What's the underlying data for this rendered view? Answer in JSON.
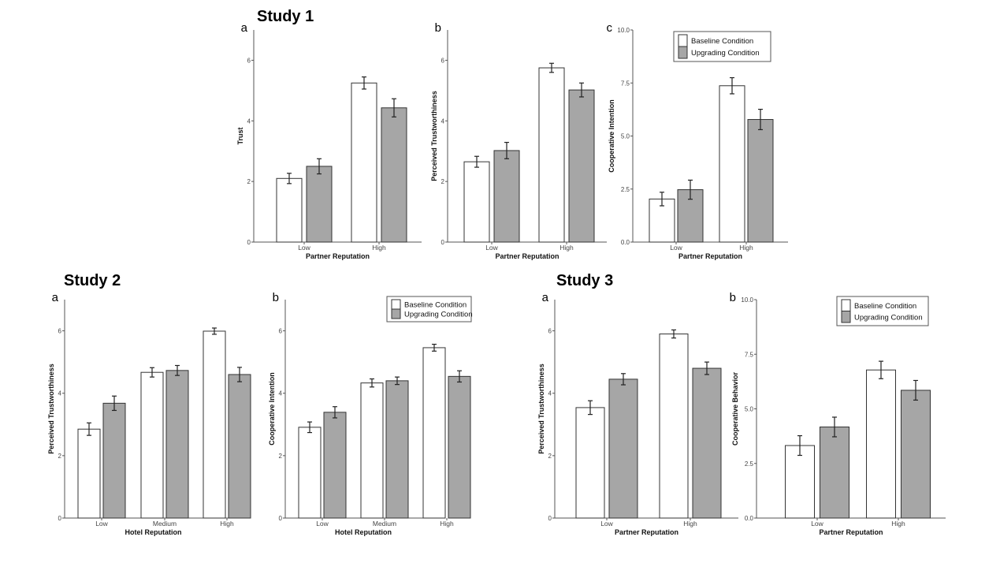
{
  "studies": [
    {
      "title": "Study 1"
    },
    {
      "title": "Study 2"
    },
    {
      "title": "Study 3"
    }
  ],
  "colors": {
    "baseline": "#ffffff",
    "upgrading": "#a6a6a6",
    "outline": "#333333"
  },
  "chart_data": [
    {
      "type": "bar",
      "study": "Study 1",
      "panel": "a",
      "ylabel": "Trust",
      "xlabel": "Partner Reputation",
      "categories": [
        "Low",
        "High"
      ],
      "ylim": [
        0,
        7
      ],
      "yticks": [
        "0",
        "2",
        "4",
        "6"
      ],
      "ytick_values": [
        0,
        2,
        4,
        6
      ],
      "legend": false,
      "series": [
        {
          "name": "Baseline Condition",
          "values": [
            2.1,
            5.25
          ],
          "errors": [
            0.17,
            0.2
          ]
        },
        {
          "name": "Upgrading Condition",
          "values": [
            2.5,
            4.43
          ],
          "errors": [
            0.25,
            0.3
          ]
        }
      ]
    },
    {
      "type": "bar",
      "study": "Study 1",
      "panel": "b",
      "ylabel": "Perceived Trustworthiness",
      "xlabel": "Partner Reputation",
      "categories": [
        "Low",
        "High"
      ],
      "ylim": [
        0,
        7
      ],
      "yticks": [
        "0",
        "2",
        "4",
        "6"
      ],
      "ytick_values": [
        0,
        2,
        4,
        6
      ],
      "legend": false,
      "series": [
        {
          "name": "Baseline Condition",
          "values": [
            2.65,
            5.75
          ],
          "errors": [
            0.18,
            0.15
          ]
        },
        {
          "name": "Upgrading Condition",
          "values": [
            3.02,
            5.02
          ],
          "errors": [
            0.27,
            0.23
          ]
        }
      ]
    },
    {
      "type": "bar",
      "study": "Study 1",
      "panel": "c",
      "ylabel": "Cooperative Intention",
      "xlabel": "Partner Reputation",
      "categories": [
        "Low",
        "High"
      ],
      "ylim": [
        0,
        10
      ],
      "yticks": [
        "0.0",
        "2.5",
        "5.0",
        "7.5",
        "10.0"
      ],
      "ytick_values": [
        0,
        2.5,
        5,
        7.5,
        10
      ],
      "legend": "top-right",
      "series": [
        {
          "name": "Baseline Condition",
          "values": [
            2.03,
            7.37
          ],
          "errors": [
            0.32,
            0.38
          ]
        },
        {
          "name": "Upgrading Condition",
          "values": [
            2.47,
            5.78
          ],
          "errors": [
            0.45,
            0.48
          ]
        }
      ]
    },
    {
      "type": "bar",
      "study": "Study 2",
      "panel": "a",
      "ylabel": "Perceived Trustworthiness",
      "xlabel": "Hotel Reputation",
      "categories": [
        "Low",
        "Medium",
        "High"
      ],
      "ylim": [
        0,
        7
      ],
      "yticks": [
        "0",
        "2",
        "4",
        "6"
      ],
      "ytick_values": [
        0,
        2,
        4,
        6
      ],
      "legend": false,
      "series": [
        {
          "name": "Baseline Condition",
          "values": [
            2.85,
            4.67,
            5.99
          ],
          "errors": [
            0.2,
            0.15,
            0.1
          ]
        },
        {
          "name": "Upgrading Condition",
          "values": [
            3.68,
            4.73,
            4.6
          ],
          "errors": [
            0.23,
            0.16,
            0.23
          ]
        }
      ]
    },
    {
      "type": "bar",
      "study": "Study 2",
      "panel": "b",
      "ylabel": "Cooperative Intention",
      "xlabel": "Hotel Reputation",
      "categories": [
        "Low",
        "Medium",
        "High"
      ],
      "ylim": [
        0,
        7
      ],
      "yticks": [
        "0",
        "2",
        "4",
        "6"
      ],
      "ytick_values": [
        0,
        2,
        4,
        6
      ],
      "legend": "top-right",
      "series": [
        {
          "name": "Baseline Condition",
          "values": [
            2.91,
            4.33,
            5.46
          ],
          "errors": [
            0.17,
            0.13,
            0.11
          ]
        },
        {
          "name": "Upgrading Condition",
          "values": [
            3.39,
            4.4,
            4.54
          ],
          "errors": [
            0.18,
            0.12,
            0.18
          ]
        }
      ]
    },
    {
      "type": "bar",
      "study": "Study 3",
      "panel": "a",
      "ylabel": "Perceived Trustworthiness",
      "xlabel": "Partner Reputation",
      "categories": [
        "Low",
        "High"
      ],
      "ylim": [
        0,
        7
      ],
      "yticks": [
        "0",
        "2",
        "4",
        "6"
      ],
      "ytick_values": [
        0,
        2,
        4,
        6
      ],
      "legend": false,
      "series": [
        {
          "name": "Baseline Condition",
          "values": [
            3.54,
            5.9
          ],
          "errors": [
            0.22,
            0.13
          ]
        },
        {
          "name": "Upgrading Condition",
          "values": [
            4.45,
            4.8
          ],
          "errors": [
            0.18,
            0.2
          ]
        }
      ]
    },
    {
      "type": "bar",
      "study": "Study 3",
      "panel": "b",
      "ylabel": "Cooperative Behavior",
      "xlabel": "Partner Reputation",
      "categories": [
        "Low",
        "High"
      ],
      "ylim": [
        0,
        10
      ],
      "yticks": [
        "0.0",
        "2.5",
        "5.0",
        "7.5",
        "10.0"
      ],
      "ytick_values": [
        0,
        2.5,
        5,
        7.5,
        10
      ],
      "legend": "top-right",
      "series": [
        {
          "name": "Baseline Condition",
          "values": [
            3.32,
            6.78
          ],
          "errors": [
            0.45,
            0.4
          ]
        },
        {
          "name": "Upgrading Condition",
          "values": [
            4.17,
            5.85
          ],
          "errors": [
            0.45,
            0.45
          ]
        }
      ]
    }
  ]
}
